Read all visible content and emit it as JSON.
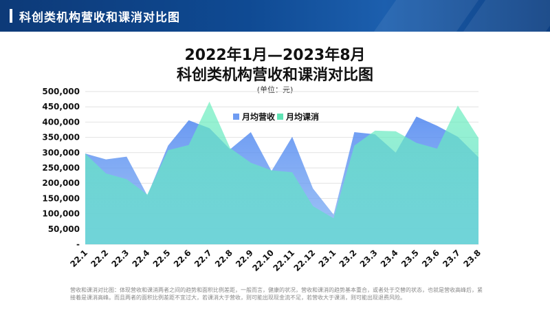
{
  "header": {
    "title": "科创类机构营收和课消对比图"
  },
  "chart_data": {
    "type": "area",
    "title": "2022年1月—2023年8月",
    "subtitle": "科创类机构营收和课消对比图",
    "unit_label": "(单位：元)",
    "categories": [
      "22.1",
      "22.2",
      "22.3",
      "22.4",
      "22.5",
      "22.6",
      "22.7",
      "22.8",
      "22.9",
      "22.10",
      "22.11",
      "22.12",
      "23.1",
      "23.2",
      "23.3",
      "23.4",
      "23.5",
      "23.6",
      "23.7",
      "23.8"
    ],
    "ylim": [
      0,
      500000
    ],
    "yticks": [
      0,
      50000,
      100000,
      150000,
      200000,
      250000,
      300000,
      350000,
      400000,
      450000,
      500000
    ],
    "ytick_labels": [
      "-",
      "50,000",
      "100,000",
      "150,000",
      "200,000",
      "250,000",
      "300,000",
      "350,000",
      "400,000",
      "450,000",
      "500,000"
    ],
    "grid": true,
    "legend_position": "top-center",
    "series": [
      {
        "name": "月均营收",
        "color": "#6f9cf2",
        "values": [
          297000,
          278000,
          287000,
          160000,
          323000,
          406000,
          380000,
          311000,
          367000,
          240000,
          352000,
          183000,
          97000,
          367000,
          360000,
          300000,
          418000,
          388000,
          352000,
          285000
        ]
      },
      {
        "name": "月均课消",
        "color": "#5fe3b4",
        "values": [
          297000,
          232000,
          213000,
          163000,
          308000,
          325000,
          467000,
          315000,
          267000,
          242000,
          236000,
          125000,
          85000,
          323000,
          372000,
          370000,
          332000,
          313000,
          454000,
          348000
        ]
      }
    ]
  },
  "footnote": "营收和课消对比图：体现营收和课消两者之间的趋势和面积比例差距，一般而言，健康的状况，营收和课消的趋势基本重合，或者处于交替的状态，也就是营收高峰后，紧接着是课消高峰。而且两者的面积比例差距不宜过大，若课消大于营收，则可能出现现金流不足，若营收大于课消，则可能出现退费风险。"
}
